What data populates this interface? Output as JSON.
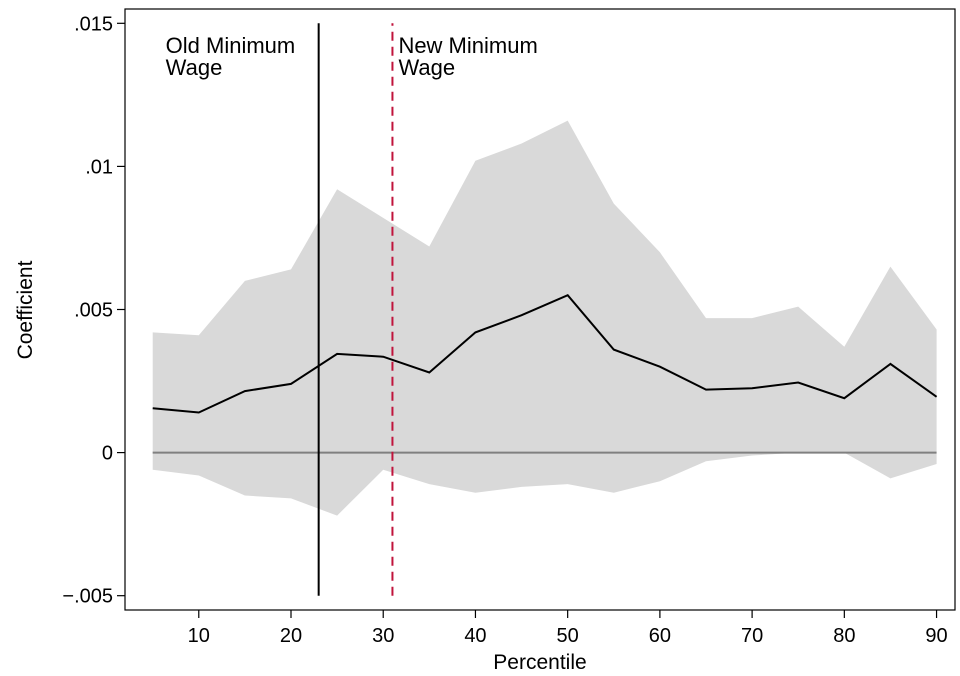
{
  "chart_data": {
    "type": "line",
    "title": "",
    "xlabel": "Percentile",
    "ylabel": "Coefficient",
    "xlim": [
      2,
      92
    ],
    "ylim": [
      -0.0055,
      0.0155
    ],
    "x_ticks": [
      10,
      20,
      30,
      40,
      50,
      60,
      70,
      80,
      90
    ],
    "x_tick_labels": [
      "10",
      "20",
      "30",
      "40",
      "50",
      "60",
      "70",
      "80",
      "90"
    ],
    "y_ticks": [
      -0.005,
      0,
      0.005,
      0.01,
      0.015
    ],
    "y_tick_labels": [
      "−.005",
      "0",
      ".005",
      ".01",
      ".015"
    ],
    "grid": false,
    "series": [
      {
        "role": "estimate",
        "color": "#000000",
        "x": [
          5,
          10,
          15,
          20,
          25,
          30,
          35,
          40,
          45,
          50,
          55,
          60,
          65,
          70,
          75,
          80,
          85,
          90
        ],
        "y": [
          0.00155,
          0.0014,
          0.00215,
          0.0024,
          0.00345,
          0.00335,
          0.0028,
          0.0042,
          0.0048,
          0.0055,
          0.0036,
          0.003,
          0.0022,
          0.00225,
          0.00245,
          0.0019,
          0.0031,
          0.00195
        ]
      }
    ],
    "confidence_band": {
      "color": "#d9d9d9",
      "x": [
        5,
        10,
        15,
        20,
        25,
        30,
        35,
        40,
        45,
        50,
        55,
        60,
        65,
        70,
        75,
        80,
        85,
        90
      ],
      "lower": [
        -0.0006,
        -0.0008,
        -0.0015,
        -0.0016,
        -0.0022,
        -0.0006,
        -0.0011,
        -0.0014,
        -0.0012,
        -0.0011,
        -0.0014,
        -0.001,
        -0.0003,
        -0.0001,
        0.0,
        0.0,
        -0.0009,
        -0.0004
      ],
      "upper": [
        0.0042,
        0.0041,
        0.006,
        0.0064,
        0.0092,
        0.0082,
        0.0072,
        0.0102,
        0.0108,
        0.0116,
        0.0087,
        0.007,
        0.0047,
        0.0047,
        0.0051,
        0.0037,
        0.0065,
        0.0043
      ]
    },
    "reference_line": {
      "y": 0,
      "color": "#808080"
    },
    "annotations": [
      {
        "name": "old-minimum-wage",
        "x": 23,
        "y_from": -0.005,
        "y_to": 0.015,
        "style": "solid",
        "color": "#000000",
        "label_lines": [
          "Old Minimum",
          "Wage"
        ]
      },
      {
        "name": "new-minimum-wage",
        "x": 31,
        "y_from": -0.005,
        "y_to": 0.015,
        "style": "dashed",
        "color": "#c0143c",
        "label_lines": [
          "New Minimum",
          "Wage"
        ]
      }
    ]
  }
}
